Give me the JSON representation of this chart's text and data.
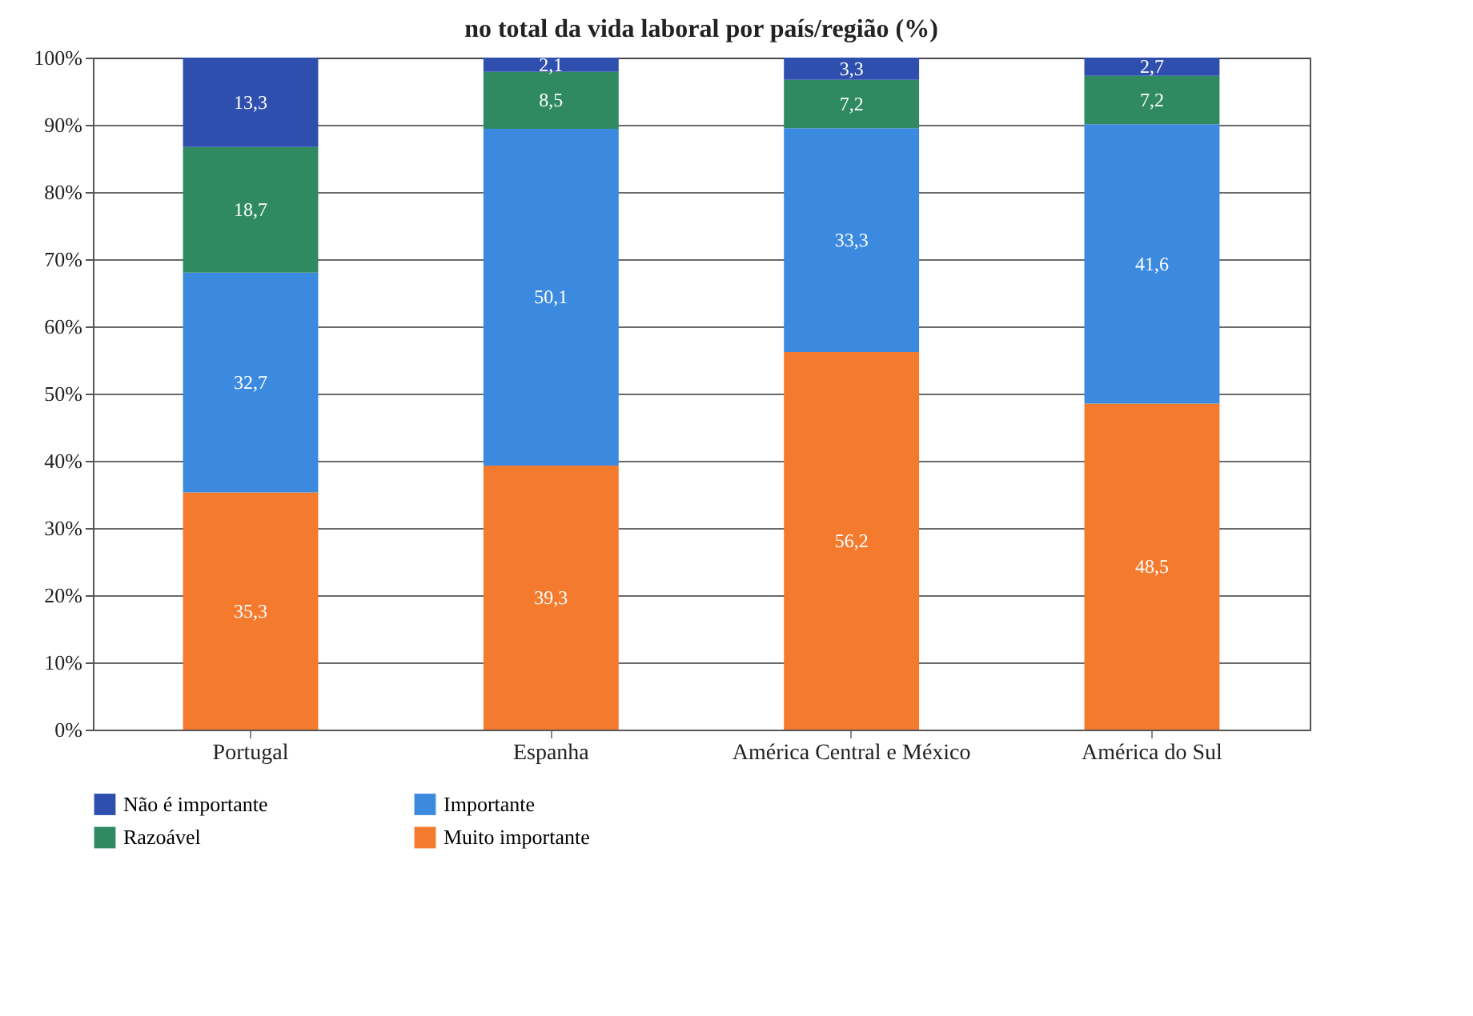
{
  "chart_data": {
    "type": "bar",
    "stacked": true,
    "title": "no total da vida laboral por país/região (%)",
    "categories": [
      "Portugal",
      "Espanha",
      "América Central e México",
      "América do Sul"
    ],
    "series": [
      {
        "name": "Muito importante",
        "color": "#f47a2e",
        "values": [
          35.3,
          39.3,
          56.2,
          48.5
        ],
        "value_labels": [
          "35,3",
          "39,3",
          "56,2",
          "48,5"
        ]
      },
      {
        "name": "Importante",
        "color": "#3c8ae0",
        "values": [
          32.7,
          50.1,
          33.3,
          41.6
        ],
        "value_labels": [
          "32,7",
          "50,1",
          "33,3",
          "41,6"
        ]
      },
      {
        "name": "Razoável",
        "color": "#2f8a62",
        "values": [
          18.7,
          8.5,
          7.2,
          7.2
        ],
        "value_labels": [
          "18,7",
          "8,5",
          "7,2",
          "7,2"
        ]
      },
      {
        "name": "Não é importante",
        "color": "#2f4fae",
        "values": [
          13.3,
          2.1,
          3.3,
          2.7
        ],
        "value_labels": [
          "13,3",
          "2,1",
          "3,3",
          "2,7"
        ]
      }
    ],
    "ylim": [
      0,
      100
    ],
    "yticks": [
      {
        "value": 0,
        "label": "0%"
      },
      {
        "value": 10,
        "label": "10%"
      },
      {
        "value": 20,
        "label": "20%"
      },
      {
        "value": 30,
        "label": "30%"
      },
      {
        "value": 40,
        "label": "40%"
      },
      {
        "value": 50,
        "label": "50%"
      },
      {
        "value": 60,
        "label": "60%"
      },
      {
        "value": 70,
        "label": "70%"
      },
      {
        "value": 80,
        "label": "80%"
      },
      {
        "value": 90,
        "label": "90%"
      },
      {
        "value": 100,
        "label": "100%"
      }
    ],
    "grid": "y",
    "legend": "bottom"
  }
}
